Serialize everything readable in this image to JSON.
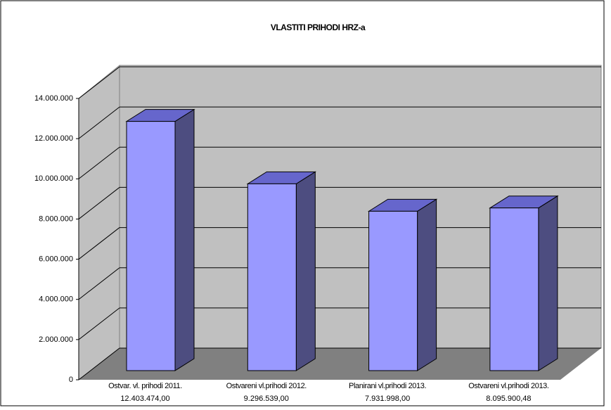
{
  "chart_data": {
    "type": "bar3d",
    "title": "VLASTITI PRIHODI HRZ-a",
    "categories": [
      "Ostvar. vl. prihodi 2011.",
      "Ostvareni vl.prihodi 2012.",
      "Planirani vl.prihodi 2013.",
      "Ostvareni vl.prihodi 2013."
    ],
    "values": [
      12403474,
      9296539,
      7931998,
      8095900.48
    ],
    "value_labels": [
      "12.403.474,00",
      "9.296.539,00",
      "7.931.998,00",
      "8.095.900,48"
    ],
    "color": "#9999ff",
    "ylim": [
      0,
      14000000
    ],
    "yticks": [
      0,
      {
        "value": 2000000,
        "label": "2.000.000"
      },
      {
        "value": 4000000,
        "label": "4.000.000"
      },
      {
        "value": 6000000,
        "label": "6.000.000"
      },
      {
        "value": 8000000,
        "label": "8.000.000"
      },
      {
        "value": 10000000,
        "label": "10.000.000"
      },
      {
        "value": 12000000,
        "label": "12.000.000"
      },
      {
        "value": 14000000,
        "label": "14.000.000"
      }
    ],
    "grid": true
  }
}
